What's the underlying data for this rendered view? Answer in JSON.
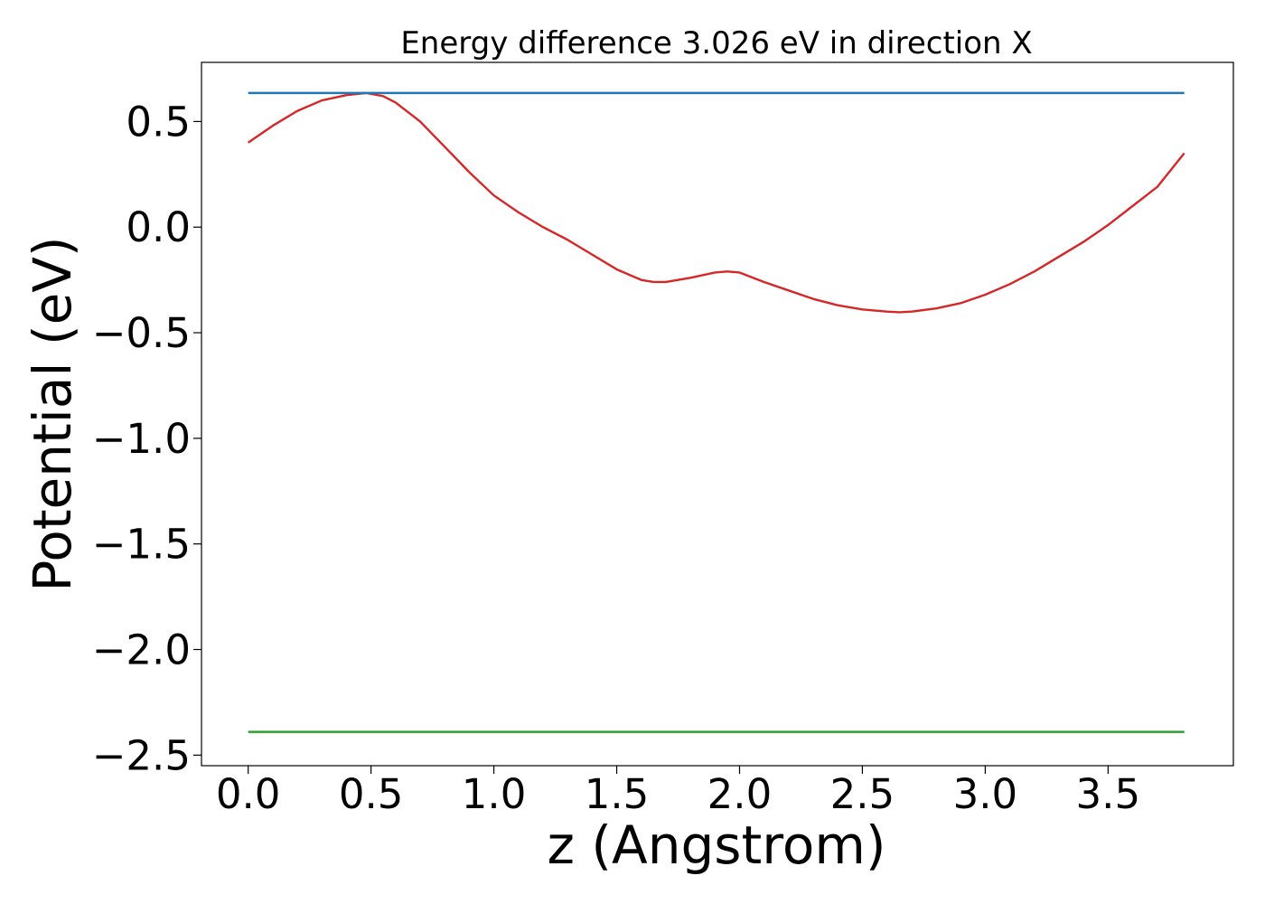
{
  "chart_data": {
    "type": "line",
    "title": "Energy difference 3.026 eV in direction X",
    "xlabel": "z (Angstrom)",
    "ylabel": "Potential (eV)",
    "xlim": [
      -0.19,
      4.01
    ],
    "ylim": [
      -2.55,
      0.78
    ],
    "xticks": [
      0.0,
      0.5,
      1.0,
      1.5,
      2.0,
      2.5,
      3.0,
      3.5
    ],
    "xtick_labels": [
      "0.0",
      "0.5",
      "1.0",
      "1.5",
      "2.0",
      "2.5",
      "3.0",
      "3.5"
    ],
    "yticks": [
      0.5,
      0.0,
      -0.5,
      -1.0,
      -1.5,
      -2.0,
      -2.5
    ],
    "ytick_labels": [
      "0.5",
      "0.0",
      "−0.5",
      "−1.0",
      "−1.5",
      "−2.0",
      "−2.5"
    ],
    "grid": false,
    "legend": "none",
    "series": [
      {
        "color": "#d62728",
        "x": [
          0.0,
          0.1,
          0.2,
          0.3,
          0.4,
          0.48,
          0.55,
          0.6,
          0.7,
          0.8,
          0.9,
          1.0,
          1.1,
          1.2,
          1.3,
          1.4,
          1.5,
          1.6,
          1.65,
          1.7,
          1.8,
          1.9,
          1.95,
          2.0,
          2.1,
          2.2,
          2.3,
          2.4,
          2.5,
          2.6,
          2.65,
          2.7,
          2.8,
          2.9,
          3.0,
          3.1,
          3.2,
          3.3,
          3.4,
          3.5,
          3.6,
          3.7,
          3.81
        ],
        "y": [
          0.4,
          0.48,
          0.55,
          0.6,
          0.625,
          0.635,
          0.62,
          0.59,
          0.5,
          0.38,
          0.26,
          0.15,
          0.07,
          0.0,
          -0.06,
          -0.13,
          -0.2,
          -0.25,
          -0.26,
          -0.26,
          -0.24,
          -0.215,
          -0.21,
          -0.215,
          -0.26,
          -0.3,
          -0.34,
          -0.37,
          -0.39,
          -0.4,
          -0.403,
          -0.4,
          -0.385,
          -0.36,
          -0.32,
          -0.27,
          -0.21,
          -0.14,
          -0.07,
          0.01,
          0.1,
          0.19,
          0.35
        ]
      },
      {
        "color": "#1f77b4",
        "x": [
          0.0,
          3.81
        ],
        "y": [
          0.635,
          0.635
        ]
      },
      {
        "color": "#2ca02c",
        "x": [
          0.0,
          3.81
        ],
        "y": [
          -2.39,
          -2.39
        ]
      }
    ]
  }
}
